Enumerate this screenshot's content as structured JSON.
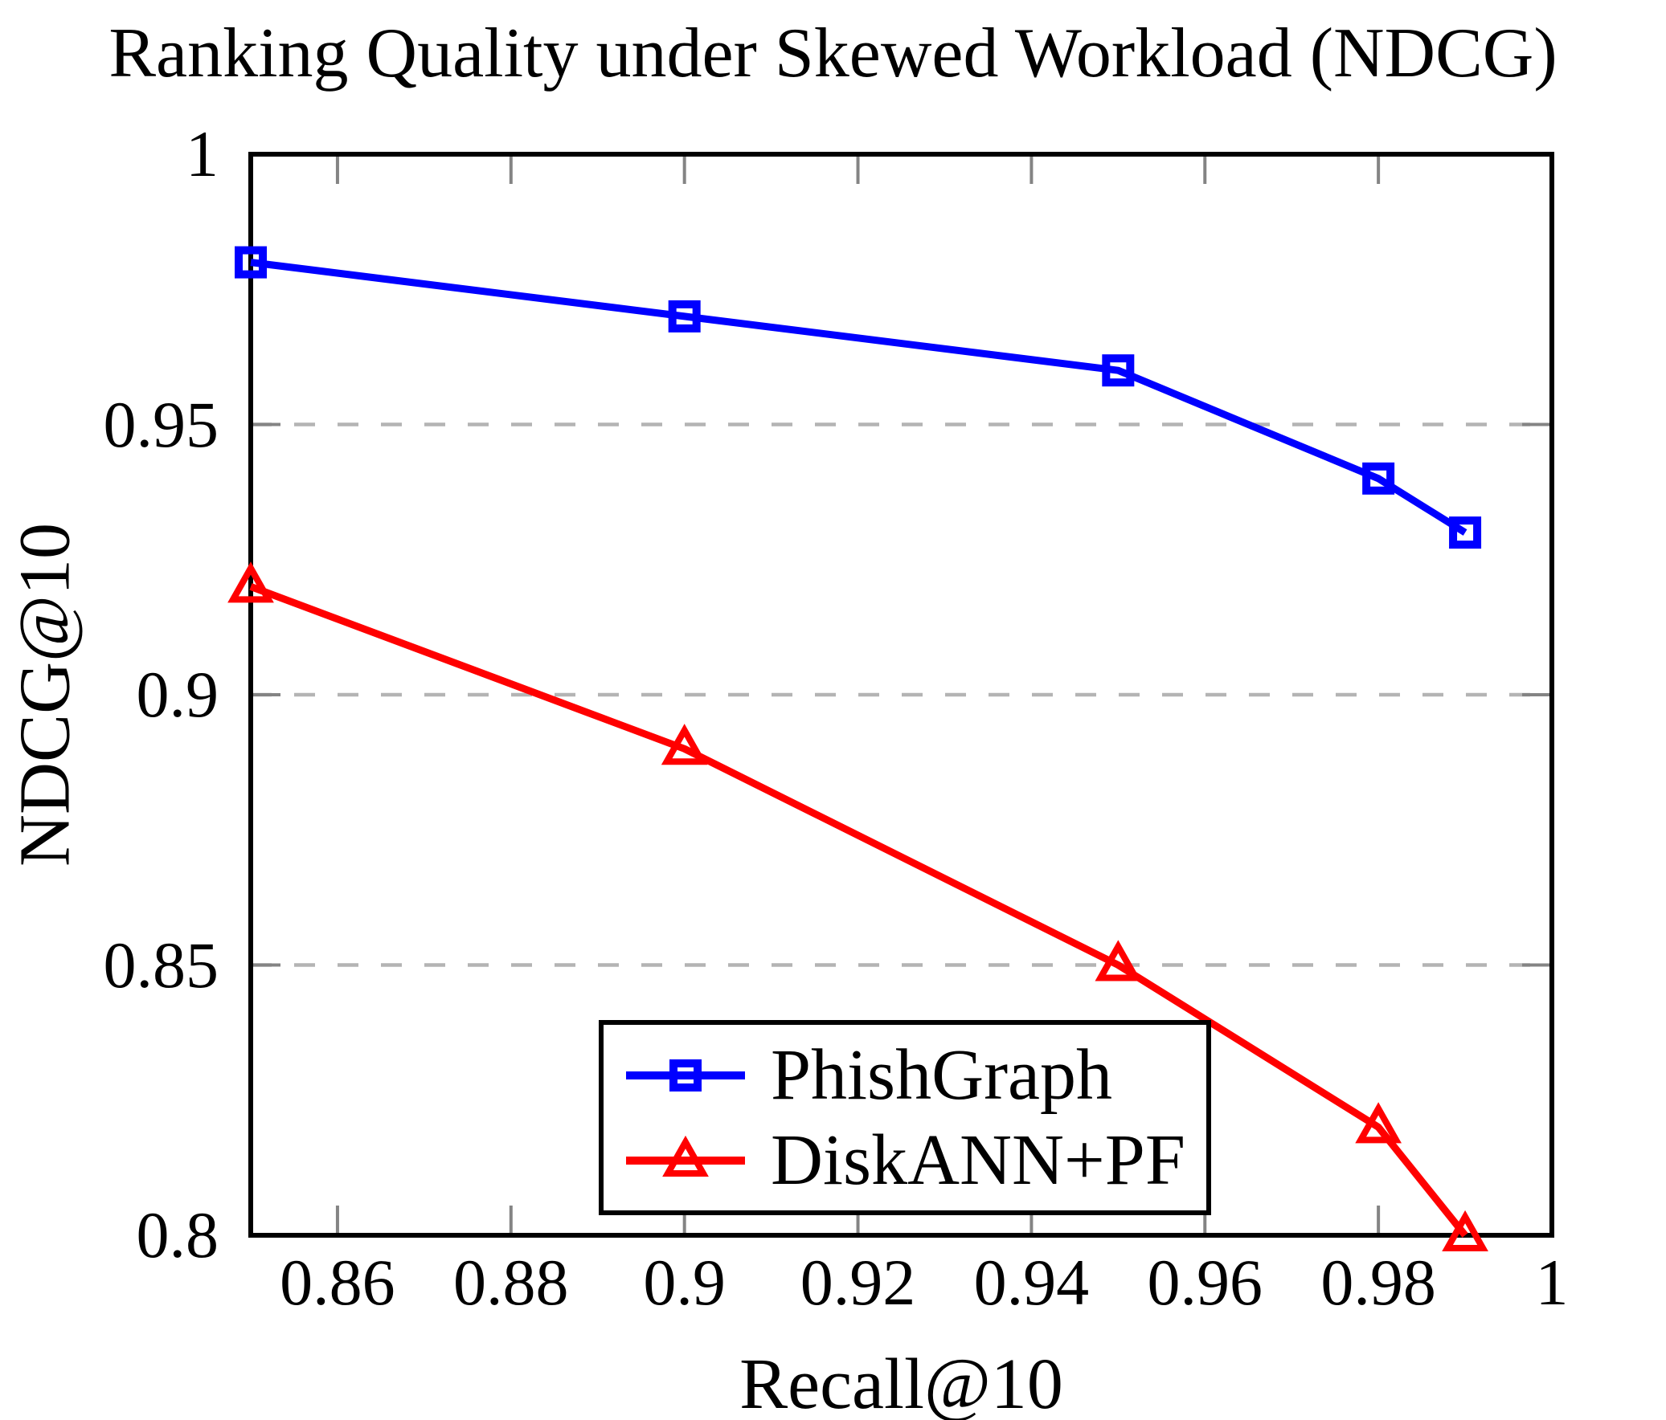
{
  "chart_data": {
    "type": "line",
    "title": "Ranking Quality under Skewed Workload (NDCG)",
    "xlabel": "Recall@10",
    "ylabel": "NDCG@10",
    "xlim": [
      0.85,
      1.0
    ],
    "ylim": [
      0.8,
      1.0
    ],
    "grid": "horizontal-dashed",
    "y_gridlines": [
      0.85,
      0.9,
      0.95
    ],
    "x_ticks": [
      {
        "value": 0.86,
        "label": "0.86"
      },
      {
        "value": 0.88,
        "label": "0.88"
      },
      {
        "value": 0.9,
        "label": "0.9"
      },
      {
        "value": 0.92,
        "label": "0.92"
      },
      {
        "value": 0.94,
        "label": "0.94"
      },
      {
        "value": 0.96,
        "label": "0.96"
      },
      {
        "value": 0.98,
        "label": "0.98"
      },
      {
        "value": 1.0,
        "label": "1"
      }
    ],
    "y_ticks": [
      {
        "value": 1.0,
        "label": "1"
      },
      {
        "value": 0.95,
        "label": "0.95"
      },
      {
        "value": 0.9,
        "label": "0.9"
      },
      {
        "value": 0.85,
        "label": "0.85"
      },
      {
        "value": 0.8,
        "label": "0.8"
      }
    ],
    "legend_position": "inside-bottom-center",
    "series": [
      {
        "name": "PhishGraph",
        "color": "#0000ff",
        "marker": "square",
        "x": [
          0.85,
          0.9,
          0.95,
          0.98,
          0.99
        ],
        "y": [
          0.98,
          0.97,
          0.96,
          0.94,
          0.93
        ]
      },
      {
        "name": "DiskANN+PF",
        "color": "#ff0000",
        "marker": "triangle",
        "x": [
          0.85,
          0.9,
          0.95,
          0.98,
          0.99
        ],
        "y": [
          0.92,
          0.89,
          0.85,
          0.82,
          0.8
        ]
      }
    ]
  },
  "colors": {
    "axis": "#000000",
    "grid": "#b4b4b4",
    "tick": "#848484",
    "background": "#ffffff"
  }
}
